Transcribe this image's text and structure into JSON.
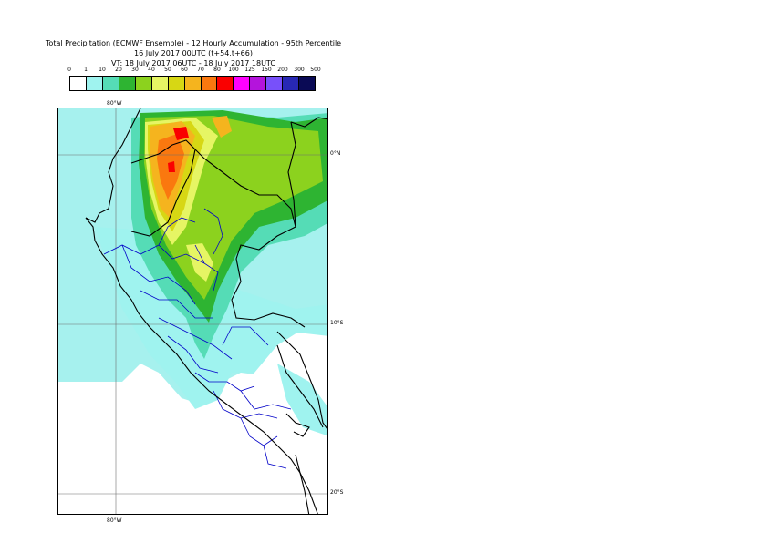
{
  "title": {
    "line1": "Total Precipitation (ECMWF Ensemble) - 12 Hourly Accumulation - 95th Percentile",
    "line2": "16 July 2017 00UTC (t+54,t+66)",
    "line3": "VT: 18 July 2017 06UTC - 18 July 2017 18UTC"
  },
  "legend": {
    "ticks": [
      "0",
      "1",
      "10",
      "20",
      "30",
      "40",
      "50",
      "60",
      "70",
      "80",
      "100",
      "125",
      "150",
      "200",
      "300",
      "500"
    ],
    "colors": [
      "#ffffff",
      "#9ff3ef",
      "#55dcb6",
      "#2eb432",
      "#8cd21e",
      "#e6f564",
      "#d7d714",
      "#f5b41e",
      "#fa780f",
      "#fa0000",
      "#ff00ff",
      "#b414dc",
      "#7850fa",
      "#2828b4",
      "#0a0a55"
    ]
  },
  "map": {
    "lat_labels": [
      "0°N",
      "10°S",
      "20°S"
    ],
    "lon_labels": [
      "80°W",
      "80°W"
    ],
    "colors": {
      "ocean": "#a6f1ee",
      "land": "#ffffff",
      "light_precip": "#9ff3ef",
      "teal": "#55dcb6",
      "green": "#2eb432",
      "light_green": "#8cd21e",
      "yellow": "#e6f564",
      "gold": "#d7d714",
      "orange": "#f5b41e",
      "dark_orange": "#fa780f",
      "red": "#fa0000",
      "coast": "#000000",
      "boundaries": "#0000c8",
      "grid": "#6e6e6e"
    }
  }
}
